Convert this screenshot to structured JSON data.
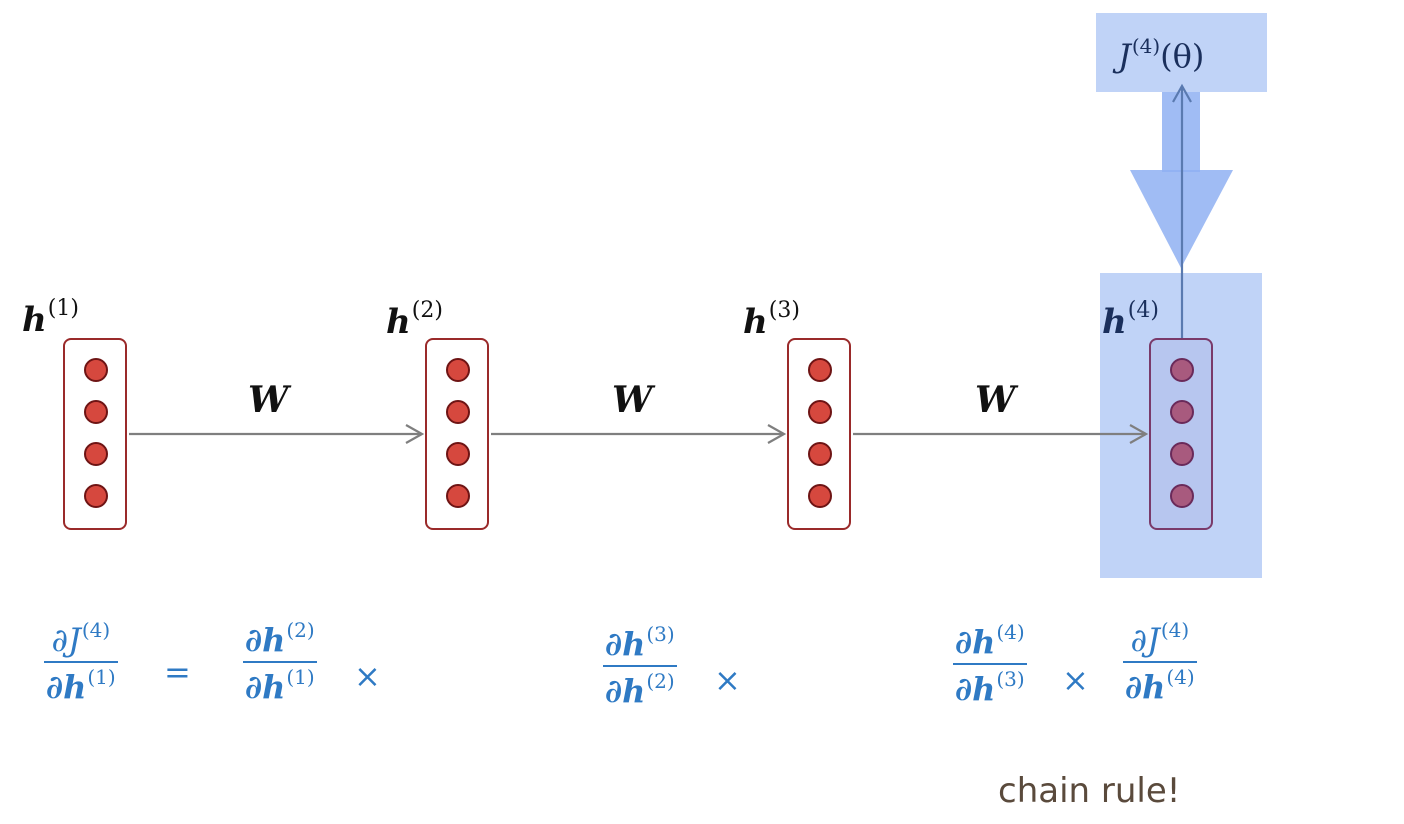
{
  "loss_node": {
    "symbol": "J",
    "superscript": "(4)",
    "arg": "(θ)"
  },
  "hidden_states": [
    {
      "symbol": "h",
      "superscript": "(1)",
      "highlighted": false
    },
    {
      "symbol": "h",
      "superscript": "(2)",
      "highlighted": false
    },
    {
      "symbol": "h",
      "superscript": "(3)",
      "highlighted": false
    },
    {
      "symbol": "h",
      "superscript": "(4)",
      "highlighted": true
    }
  ],
  "weights": [
    {
      "label": "W"
    },
    {
      "label": "W"
    },
    {
      "label": "W"
    }
  ],
  "equation": {
    "lhs": {
      "num_sym": "∂J",
      "num_sup": "(4)",
      "den_sym": "∂h",
      "den_sup": "(1)"
    },
    "equals": "=",
    "terms": [
      {
        "num_sym": "∂h",
        "num_sup": "(2)",
        "den_sym": "∂h",
        "den_sup": "(1)",
        "op": "×"
      },
      {
        "num_sym": "∂h",
        "num_sup": "(3)",
        "den_sym": "∂h",
        "den_sup": "(2)",
        "op": "×"
      },
      {
        "num_sym": "∂h",
        "num_sup": "(4)",
        "den_sym": "∂h",
        "den_sup": "(3)",
        "op": "×"
      },
      {
        "num_sym": "∂J",
        "num_sup": "(4)",
        "den_sym": "∂h",
        "den_sup": "(4)",
        "op": ""
      }
    ]
  },
  "caption": "chain rule!",
  "colors": {
    "neuron_fill": "#d6483e",
    "vector_border": "#9a2a2a",
    "arrow": "#7f7f7f",
    "highlight": "#8cafef",
    "equation": "#2f7ac4",
    "caption": "#5a4a3c"
  }
}
